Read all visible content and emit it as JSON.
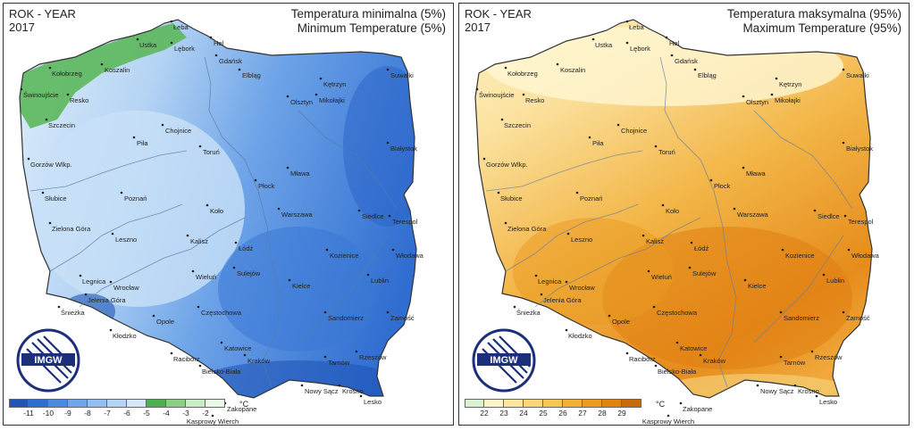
{
  "panels": [
    {
      "year_label": "ROK - YEAR",
      "year": "2017",
      "title_pl": "Temperatura minimalna (5%)",
      "title_en": "Minimum Temperature (5%)",
      "legend": {
        "ticks": [
          "-11",
          "-10",
          "-9",
          "-8",
          "-7",
          "-6",
          "-5",
          "-4",
          "-3",
          "-2"
        ],
        "unit": "°C",
        "colors": [
          "#1f55b8",
          "#2e6ed1",
          "#4a8ae0",
          "#6fa5ea",
          "#93bef1",
          "#b6d4f6",
          "#d6e8fa",
          "#4caf50",
          "#8ccf84",
          "#c8ecc4",
          "#eaf8e8"
        ]
      }
    },
    {
      "year_label": "ROK - YEAR",
      "year": "2017",
      "title_pl": "Temperatura maksymalna (95%)",
      "title_en": "Maximum Temperature (95%)",
      "legend": {
        "ticks": [
          "22",
          "23",
          "24",
          "25",
          "26",
          "27",
          "28",
          "29"
        ],
        "unit": "°C",
        "colors": [
          "#d9f3d0",
          "#fbf4c8",
          "#fbe7a0",
          "#f9d777",
          "#f6c553",
          "#f2b133",
          "#ec9b1e",
          "#e2820f",
          "#c96a08"
        ]
      }
    }
  ],
  "logo_text": "IMGW",
  "cities": [
    {
      "name": "Hel"
    },
    {
      "name": "Łeba"
    },
    {
      "name": "Ustka"
    },
    {
      "name": "Lębork"
    },
    {
      "name": "Gdańsk"
    },
    {
      "name": "Kołobrzeg"
    },
    {
      "name": "Koszalin"
    },
    {
      "name": "Elbląg"
    },
    {
      "name": "Kętrzyn"
    },
    {
      "name": "Suwałki"
    },
    {
      "name": "Świnoujście"
    },
    {
      "name": "Resko"
    },
    {
      "name": "Olsztyn"
    },
    {
      "name": "Mikołajki"
    },
    {
      "name": "Chojnice"
    },
    {
      "name": "Szczecin"
    },
    {
      "name": "Mława"
    },
    {
      "name": "Białystok"
    },
    {
      "name": "Piła"
    },
    {
      "name": "Toruń"
    },
    {
      "name": "Gorzów Wlkp."
    },
    {
      "name": "Płock"
    },
    {
      "name": "Słubice"
    },
    {
      "name": "Poznań"
    },
    {
      "name": "Warszawa"
    },
    {
      "name": "Siedlce"
    },
    {
      "name": "Koło"
    },
    {
      "name": "Terespol"
    },
    {
      "name": "Zielona Góra"
    },
    {
      "name": "Leszno"
    },
    {
      "name": "Kalisz"
    },
    {
      "name": "Łódź"
    },
    {
      "name": "Kozienice"
    },
    {
      "name": "Włodawa"
    },
    {
      "name": "Sulejów"
    },
    {
      "name": "Legnica"
    },
    {
      "name": "Wieluń"
    },
    {
      "name": "Lublin"
    },
    {
      "name": "Wrocław"
    },
    {
      "name": "Jelenia Góra"
    },
    {
      "name": "Kielce"
    },
    {
      "name": "Śnieżka"
    },
    {
      "name": "Częstochowa"
    },
    {
      "name": "Sandomierz"
    },
    {
      "name": "Zamość"
    },
    {
      "name": "Opole"
    },
    {
      "name": "Kłodzko"
    },
    {
      "name": "Katowice"
    },
    {
      "name": "Racibórz"
    },
    {
      "name": "Kraków"
    },
    {
      "name": "Tarnów"
    },
    {
      "name": "Rzeszów"
    },
    {
      "name": "Bielsko-Biała"
    },
    {
      "name": "Nowy Sącz"
    },
    {
      "name": "Krosno"
    },
    {
      "name": "Lesko"
    },
    {
      "name": "Zakopane"
    },
    {
      "name": "Kasprowy Wierch"
    }
  ]
}
